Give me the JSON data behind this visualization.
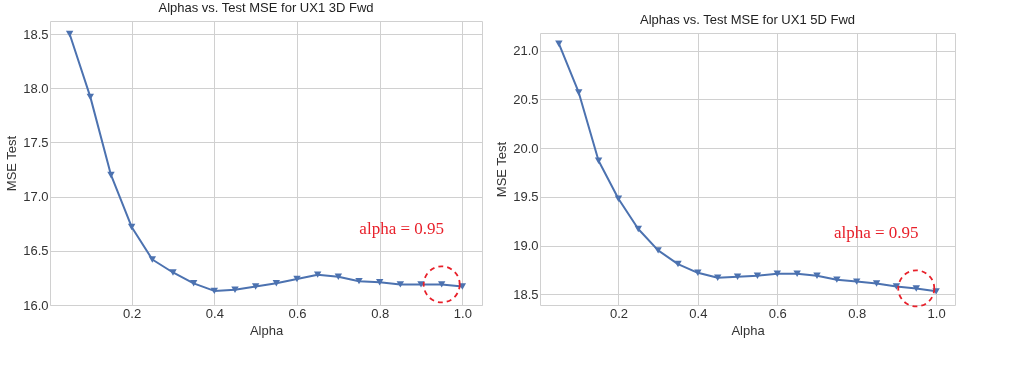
{
  "chart_data": [
    {
      "type": "line",
      "title": "Alphas vs. Test MSE for UX1 3D Fwd",
      "xlabel": "Alpha",
      "ylabel": "MSE Test",
      "x": [
        0.05,
        0.1,
        0.15,
        0.2,
        0.25,
        0.3,
        0.35,
        0.4,
        0.45,
        0.5,
        0.55,
        0.6,
        0.65,
        0.7,
        0.75,
        0.8,
        0.85,
        0.9,
        0.95,
        1.0
      ],
      "series": [
        {
          "color": "#4c72b0",
          "values": [
            18.5,
            17.92,
            17.2,
            16.72,
            16.42,
            16.3,
            16.2,
            16.13,
            16.14,
            16.17,
            16.2,
            16.24,
            16.28,
            16.26,
            16.22,
            16.21,
            16.19,
            16.19,
            16.19,
            16.17
          ]
        }
      ],
      "xlim": [
        0.0025,
        1.0475
      ],
      "ylim": [
        16.0,
        18.62
      ],
      "xticks": [
        0.2,
        0.4,
        0.6,
        0.8,
        {
          "value": 1,
          "label": "1.0"
        }
      ],
      "yticks": [
        {
          "value": 16,
          "label": "16.0"
        },
        16.5,
        {
          "value": 17,
          "label": "17.0"
        },
        17.5,
        {
          "value": 18,
          "label": "18.0"
        },
        18.5
      ],
      "grid": true,
      "marker": "triangle-down",
      "line_style": "solid",
      "annotations": [
        {
          "text": "alpha = 0.95",
          "x": 0.95,
          "y": 16.19
        }
      ]
    },
    {
      "type": "line",
      "title": "Alphas vs. Test MSE for UX1 5D Fwd",
      "xlabel": "Alpha",
      "ylabel": "MSE Test",
      "x": [
        0.05,
        0.1,
        0.15,
        0.2,
        0.25,
        0.3,
        0.35,
        0.4,
        0.45,
        0.5,
        0.55,
        0.6,
        0.65,
        0.7,
        0.75,
        0.8,
        0.85,
        0.9,
        0.95,
        1.0
      ],
      "series": [
        {
          "color": "#4c72b0",
          "values": [
            21.07,
            20.57,
            19.87,
            19.48,
            19.17,
            18.95,
            18.81,
            18.72,
            18.67,
            18.68,
            18.69,
            18.71,
            18.71,
            18.69,
            18.65,
            18.63,
            18.61,
            18.58,
            18.56,
            18.53
          ]
        }
      ],
      "xlim": [
        0.0025,
        1.0475
      ],
      "ylim": [
        18.39,
        21.18
      ],
      "xticks": [
        0.2,
        0.4,
        0.6,
        0.8,
        {
          "value": 1,
          "label": "1.0"
        }
      ],
      "yticks": [
        18.5,
        {
          "value": 19,
          "label": "19.0"
        },
        19.5,
        {
          "value": 20,
          "label": "20.0"
        },
        20.5,
        {
          "value": 21,
          "label": "21.0"
        }
      ],
      "grid": true,
      "marker": "triangle-down",
      "line_style": "solid",
      "annotations": [
        {
          "text": "alpha = 0.95",
          "x": 0.95,
          "y": 18.56
        }
      ]
    }
  ]
}
